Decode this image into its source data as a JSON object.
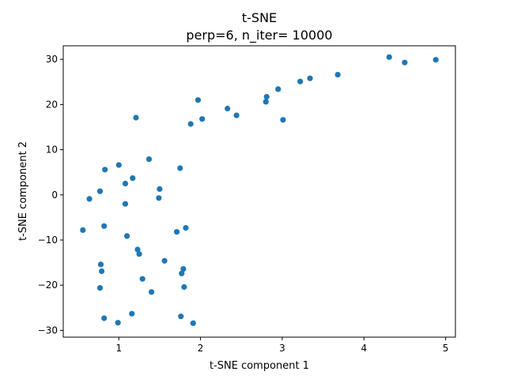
{
  "chart_data": {
    "type": "scatter",
    "title": "t-SNE",
    "subtitle": "perp=6, n_iter= 10000",
    "xlabel": "t-SNE component 1",
    "ylabel": "t-SNE component 2",
    "xlim": [
      0.32,
      5.12
    ],
    "ylim": [
      -31.5,
      33.0
    ],
    "xticks": [
      1,
      2,
      3,
      4,
      5
    ],
    "yticks": [
      -30,
      -20,
      -10,
      0,
      10,
      20,
      30
    ],
    "grid": false,
    "legend": "none",
    "marker_color": "#1f77b4",
    "points": [
      {
        "x": 4.88,
        "y": 29.9
      },
      {
        "x": 4.5,
        "y": 29.3
      },
      {
        "x": 4.31,
        "y": 30.5
      },
      {
        "x": 3.68,
        "y": 26.6
      },
      {
        "x": 3.34,
        "y": 25.8
      },
      {
        "x": 3.22,
        "y": 25.1
      },
      {
        "x": 2.95,
        "y": 23.4
      },
      {
        "x": 2.81,
        "y": 21.7
      },
      {
        "x": 2.8,
        "y": 20.6
      },
      {
        "x": 3.01,
        "y": 16.6
      },
      {
        "x": 2.33,
        "y": 19.1
      },
      {
        "x": 2.44,
        "y": 17.6
      },
      {
        "x": 1.97,
        "y": 21.0
      },
      {
        "x": 2.02,
        "y": 16.8
      },
      {
        "x": 1.88,
        "y": 15.7
      },
      {
        "x": 1.21,
        "y": 17.1
      },
      {
        "x": 1.37,
        "y": 7.9
      },
      {
        "x": 1.75,
        "y": 5.9
      },
      {
        "x": 0.83,
        "y": 5.6
      },
      {
        "x": 1.0,
        "y": 6.6
      },
      {
        "x": 1.17,
        "y": 3.7
      },
      {
        "x": 1.08,
        "y": 2.5
      },
      {
        "x": 1.5,
        "y": 1.3
      },
      {
        "x": 0.77,
        "y": 0.8
      },
      {
        "x": 0.64,
        "y": -0.9
      },
      {
        "x": 1.49,
        "y": -0.7
      },
      {
        "x": 1.08,
        "y": -2.0
      },
      {
        "x": 0.56,
        "y": -7.8
      },
      {
        "x": 0.82,
        "y": -6.9
      },
      {
        "x": 1.1,
        "y": -9.1
      },
      {
        "x": 1.71,
        "y": -8.2
      },
      {
        "x": 1.82,
        "y": -7.3
      },
      {
        "x": 1.23,
        "y": -12.1
      },
      {
        "x": 1.25,
        "y": -13.1
      },
      {
        "x": 1.56,
        "y": -14.6
      },
      {
        "x": 0.78,
        "y": -15.4
      },
      {
        "x": 0.79,
        "y": -16.9
      },
      {
        "x": 1.79,
        "y": -16.4
      },
      {
        "x": 1.77,
        "y": -17.4
      },
      {
        "x": 1.29,
        "y": -18.6
      },
      {
        "x": 0.77,
        "y": -20.6
      },
      {
        "x": 1.8,
        "y": -20.4
      },
      {
        "x": 1.4,
        "y": -21.5
      },
      {
        "x": 1.16,
        "y": -26.3
      },
      {
        "x": 0.82,
        "y": -27.3
      },
      {
        "x": 1.76,
        "y": -26.9
      },
      {
        "x": 0.99,
        "y": -28.3
      },
      {
        "x": 1.91,
        "y": -28.4
      }
    ]
  }
}
